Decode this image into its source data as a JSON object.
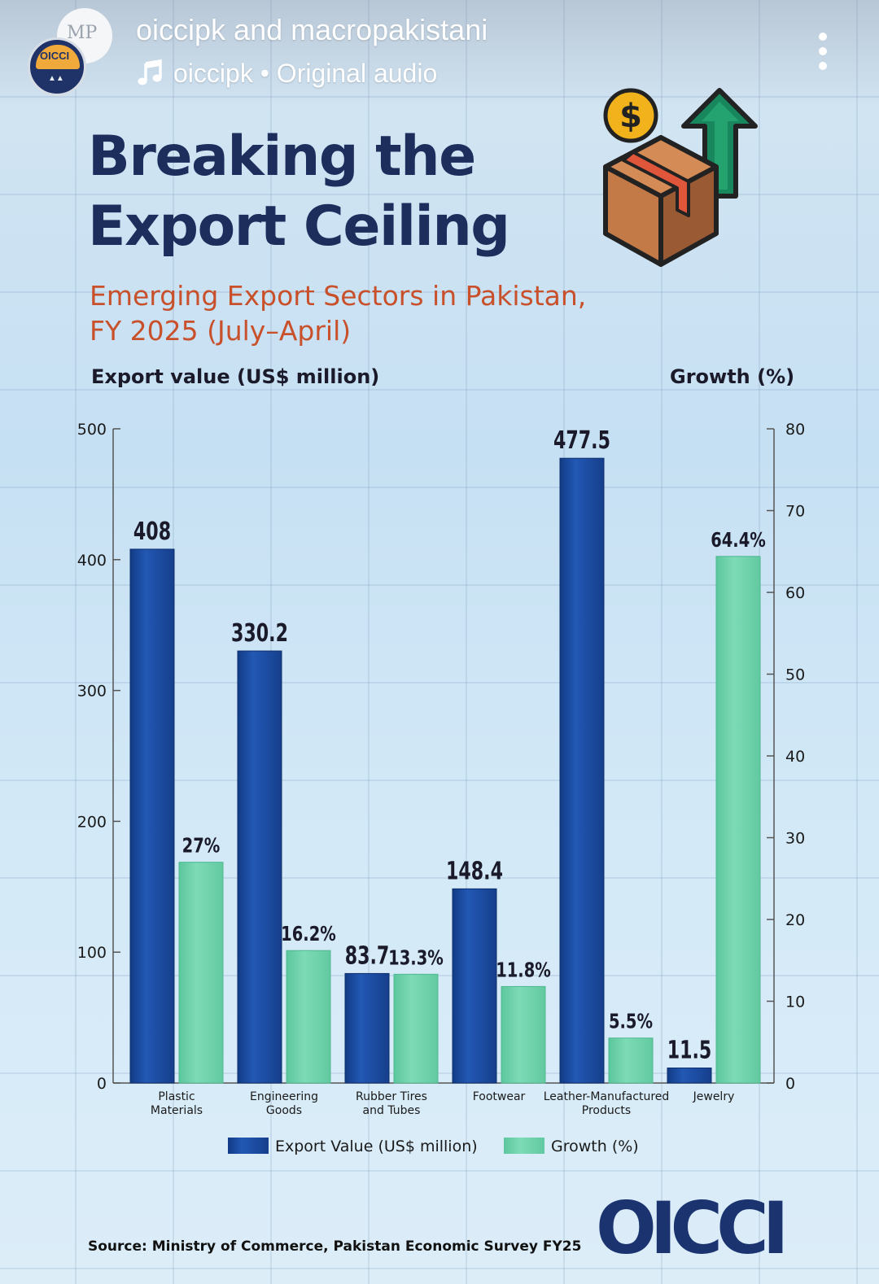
{
  "post": {
    "username": "oiccipk and macropakistani",
    "audio": "oiccipk • Original audio"
  },
  "avatars": {
    "back_initials": "MP",
    "front_label": "OICCI"
  },
  "infographic": {
    "title_line1": "Breaking the",
    "title_line2": "Export Ceiling",
    "subtitle_line1": "Emerging Export Sectors in Pakistan,",
    "subtitle_line2": "FY 2025 (July–April)",
    "left_axis_heading": "Export value (US$ million)",
    "right_axis_heading": "Growth (%)",
    "source": "Source: Ministry of Commerce, Pakistan Economic Survey FY25",
    "brand": "OICCI"
  },
  "colors": {
    "title": "#1d2d5c",
    "subtitle": "#c8502a",
    "export_bar": "#1f4ea3",
    "growth_bar": "#6fd3ad"
  },
  "icons": {
    "music": "music-note-icon",
    "menu": "more-vertical-icon",
    "export_box": "box-with-dollar-and-arrow-icon"
  },
  "chart_data": {
    "type": "bar",
    "categories": [
      [
        "Plastic",
        "Materials"
      ],
      [
        "Engineering",
        "Goods"
      ],
      [
        "Rubber Tires",
        "and Tubes"
      ],
      [
        "Footwear"
      ],
      [
        "Leather-Manufactured",
        "Products"
      ],
      [
        "Jewelry"
      ]
    ],
    "series": [
      {
        "name": "Export Value (US$ million)",
        "axis": "left",
        "values": [
          408,
          330.2,
          83.7,
          148.4,
          477.5,
          11.5
        ],
        "labels": [
          "408",
          "330.2",
          "83.7",
          "148.4",
          "477.5",
          "11.5"
        ]
      },
      {
        "name": "Growth (%)",
        "axis": "right",
        "values": [
          27,
          16.2,
          13.3,
          11.8,
          5.5,
          64.4
        ],
        "labels": [
          "27%",
          "16.2%",
          "13.3%",
          "11.8%",
          "5.5%",
          "64.4%"
        ]
      }
    ],
    "y_left": {
      "label": "Export value (US$ million)",
      "lim": [
        0,
        500
      ],
      "ticks": [
        0,
        100,
        200,
        300,
        400,
        500
      ]
    },
    "y_right": {
      "label": "Growth (%)",
      "lim": [
        0,
        80
      ],
      "ticks": [
        0,
        10,
        20,
        30,
        40,
        50,
        60,
        70,
        80
      ]
    },
    "legend": [
      "Export Value (US$ million)",
      "Growth (%)"
    ],
    "legend_position": "bottom-center"
  }
}
